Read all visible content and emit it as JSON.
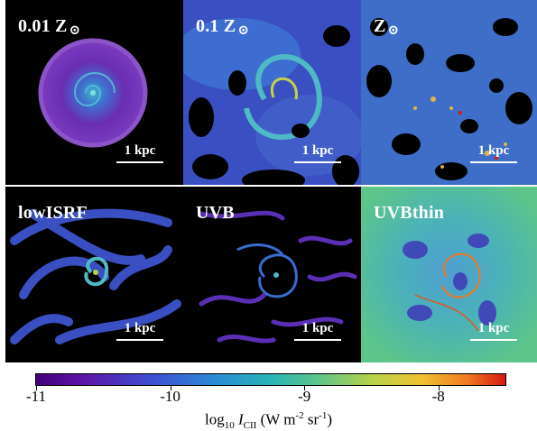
{
  "panels": [
    {
      "label": "0.01 Z",
      "solar": "⊙",
      "scale": "1 kpc"
    },
    {
      "label": "0.1 Z",
      "solar": "⊙",
      "scale": "1 kpc"
    },
    {
      "label": "Z",
      "solar": "⊙",
      "scale": "1 kpc"
    },
    {
      "label": "lowISRF",
      "solar": "",
      "scale": "1 kpc"
    },
    {
      "label": "UVB",
      "solar": "",
      "scale": "1 kpc"
    },
    {
      "label": "UVBthin",
      "solar": "",
      "scale": "1 kpc"
    }
  ],
  "colorbar": {
    "ticks": [
      "-11",
      "-10",
      "-9",
      "-8"
    ],
    "tick_values": [
      -11,
      -10,
      -9,
      -8
    ],
    "range": [
      -11,
      -7.5
    ],
    "label_prefix": "log",
    "label_log_sub": "10",
    "label_var": "I",
    "label_var_sub": "CII",
    "label_units": " (W m",
    "label_sup1": "-2",
    "label_mid": " sr",
    "label_sup2": "-1",
    "label_end": ")",
    "colormap": [
      "#42007a",
      "#3d50d4",
      "#29b4b6",
      "#b9d248",
      "#f0c232",
      "#d51a10"
    ]
  }
}
